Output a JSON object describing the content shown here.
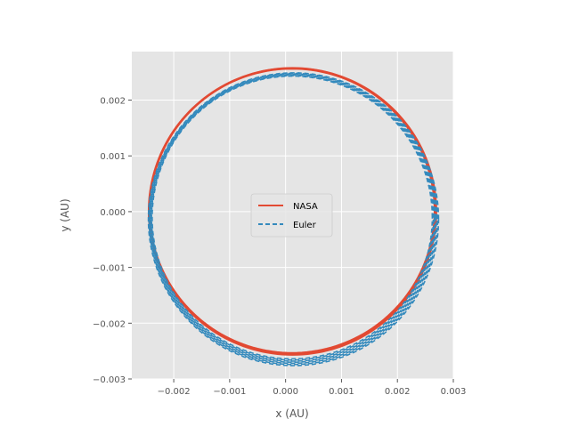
{
  "chart_data": {
    "type": "line",
    "title": "",
    "xlabel": "x (AU)",
    "ylabel": "y (AU)",
    "xlim": [
      -0.00275,
      0.003
    ],
    "ylim": [
      -0.003,
      0.00287
    ],
    "xticks": [
      -0.002,
      -0.001,
      0.0,
      0.001,
      0.002,
      0.003
    ],
    "xtick_labels": [
      "−0.002",
      "−0.001",
      "0.000",
      "0.001",
      "0.002",
      "0.003"
    ],
    "yticks": [
      0.002,
      0.001,
      0.0,
      -0.001,
      -0.002,
      -0.003
    ],
    "ytick_labels": [
      "0.002",
      "0.001",
      "0.000",
      "−0.001",
      "−0.002",
      "−0.003"
    ],
    "grid": true,
    "legend_position": "center",
    "series": [
      {
        "name": "NASA",
        "style": "solid",
        "color": "#E24A33",
        "center": [
          0.00012,
          1e-05
        ],
        "radius": [
          0.00256,
          0.00256
        ],
        "radius_spread": 3e-05
      },
      {
        "name": "Euler",
        "style": "dashed",
        "color": "#348ABD",
        "center": [
          0.00013,
          -0.00012
        ],
        "radius": [
          0.00255,
          0.00258
        ],
        "radius_spread": 9e-05
      }
    ]
  }
}
